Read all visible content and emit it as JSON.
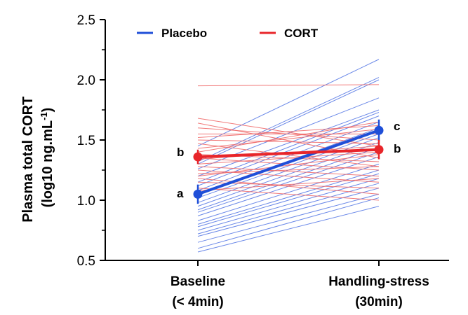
{
  "chart_data": {
    "type": "line",
    "categories": [
      "Baseline",
      "Handling-stress"
    ],
    "category_sublabels": [
      "(< 4min)",
      "(30min)"
    ],
    "ylabel_line1": "Plasma total CORT",
    "ylabel_line2_prefix": "(log10 ng.mL",
    "ylabel_line2_sup": "-1",
    "ylabel_line2_suffix": ")",
    "ylim": [
      0.5,
      2.5
    ],
    "yticks": [
      "0.5",
      "1.0",
      "1.5",
      "2.0",
      "2.5"
    ],
    "legend": {
      "position": "top",
      "entries": [
        "Placebo",
        "CORT"
      ]
    },
    "colors": {
      "Placebo": "#1f4fd8",
      "CORT": "#e8252a",
      "Placebo_thin": "#5a7be6",
      "CORT_thin": "#f06a6a"
    },
    "series": [
      {
        "name": "Placebo",
        "mean": {
          "values": [
            1.05,
            1.58
          ],
          "err": [
            0.08,
            0.09
          ],
          "letters": [
            "a",
            "c"
          ]
        },
        "individuals": [
          [
            1.45,
            2.17
          ],
          [
            1.32,
            2.02
          ],
          [
            1.3,
            2.0
          ],
          [
            1.26,
            1.85
          ],
          [
            1.2,
            1.75
          ],
          [
            1.15,
            1.73
          ],
          [
            1.12,
            1.7
          ],
          [
            1.08,
            1.65
          ],
          [
            1.05,
            1.6
          ],
          [
            1.02,
            1.55
          ],
          [
            0.98,
            1.52
          ],
          [
            0.95,
            1.48
          ],
          [
            0.92,
            1.44
          ],
          [
            0.9,
            1.4
          ],
          [
            0.87,
            1.36
          ],
          [
            0.83,
            1.3
          ],
          [
            0.8,
            1.25
          ],
          [
            0.78,
            1.22
          ],
          [
            0.75,
            1.18
          ],
          [
            0.72,
            1.14
          ],
          [
            0.7,
            1.1
          ],
          [
            0.65,
            1.05
          ],
          [
            0.6,
            1.02
          ],
          [
            0.57,
            0.95
          ]
        ]
      },
      {
        "name": "CORT",
        "mean": {
          "values": [
            1.36,
            1.42
          ],
          "err": [
            0.06,
            0.08
          ],
          "letters": [
            "b",
            "b"
          ]
        },
        "individuals": [
          [
            1.95,
            1.96
          ],
          [
            1.68,
            1.45
          ],
          [
            1.64,
            1.35
          ],
          [
            1.6,
            1.5
          ],
          [
            1.55,
            1.55
          ],
          [
            1.52,
            1.62
          ],
          [
            1.5,
            1.47
          ],
          [
            1.47,
            1.28
          ],
          [
            1.43,
            1.59
          ],
          [
            1.4,
            1.65
          ],
          [
            1.38,
            1.32
          ],
          [
            1.35,
            1.25
          ],
          [
            1.34,
            1.45
          ],
          [
            1.3,
            1.4
          ],
          [
            1.28,
            1.2
          ],
          [
            1.25,
            1.15
          ],
          [
            1.22,
            1.28
          ],
          [
            1.2,
            1.38
          ],
          [
            1.18,
            1.05
          ],
          [
            1.15,
            1.1
          ],
          [
            1.1,
            1.0
          ],
          [
            1.08,
            1.18
          ]
        ]
      }
    ]
  }
}
